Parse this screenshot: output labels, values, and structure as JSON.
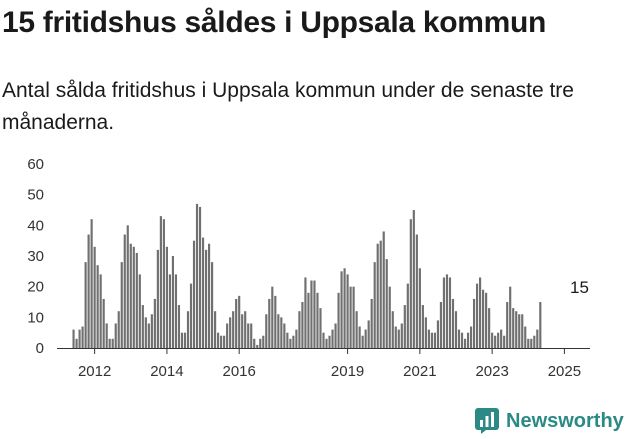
{
  "header": {
    "title": "15 fritidshus såldes i Uppsala kommun",
    "subtitle": "Antal sålda fritidshus i Uppsala kommun under de senaste tre månaderna."
  },
  "brand": {
    "name": "Newsworthy",
    "icon": "newsworthy-chart-icon",
    "color": "#2b8a86"
  },
  "colors": {
    "bar": "#707070",
    "highlight": "#2b8a86",
    "axis": "#333333"
  },
  "chart_data": {
    "type": "bar",
    "xlim": [
      "2011-01",
      "2025-09"
    ],
    "ylim": [
      0,
      60
    ],
    "y_ticks": [
      0,
      10,
      20,
      30,
      40,
      50,
      60
    ],
    "x_ticks": [
      {
        "label": "2012",
        "at": "2012-01"
      },
      {
        "label": "2014",
        "at": "2014-01"
      },
      {
        "label": "2016",
        "at": "2016-01"
      },
      {
        "label": "2019",
        "at": "2019-01"
      },
      {
        "label": "2021",
        "at": "2021-01"
      },
      {
        "label": "2023",
        "at": "2023-01"
      },
      {
        "label": "2025",
        "at": "2025-01"
      }
    ],
    "highlight": {
      "period": "2025-06",
      "value": 15,
      "label": "15"
    },
    "series": [
      {
        "start": "2011-06",
        "values": [
          6,
          3,
          6,
          7,
          28,
          37,
          42,
          33,
          27,
          24,
          16,
          8,
          3,
          3,
          8,
          12,
          28,
          37,
          40,
          34,
          33,
          31,
          24,
          14,
          10,
          8,
          11,
          16,
          32,
          43,
          42,
          33,
          24,
          30,
          24,
          14,
          5,
          5,
          12,
          21,
          35,
          47,
          46,
          36,
          32,
          34,
          28,
          12,
          5,
          4,
          4,
          8,
          10,
          12,
          16,
          17,
          11,
          12,
          8,
          8,
          3,
          1,
          3,
          4,
          11,
          16,
          20,
          17,
          11,
          10,
          8,
          5,
          3,
          4,
          6,
          12,
          15,
          23,
          18,
          22,
          22,
          18,
          13,
          5,
          3,
          4,
          6,
          8,
          18,
          25,
          26,
          24,
          20,
          20,
          12,
          7,
          4,
          6,
          9,
          16,
          28,
          34,
          35,
          38,
          29,
          20,
          12,
          7,
          6,
          8,
          14,
          21,
          42,
          45,
          37,
          26,
          14,
          10,
          6,
          5,
          5,
          9,
          15,
          23,
          24,
          23,
          16,
          12,
          6,
          5,
          3,
          5,
          7,
          16,
          21,
          23,
          19,
          18,
          13,
          5,
          4,
          5,
          6,
          4,
          15,
          20,
          13,
          12,
          11,
          11,
          7,
          3,
          3,
          4,
          6,
          15
        ]
      }
    ]
  }
}
